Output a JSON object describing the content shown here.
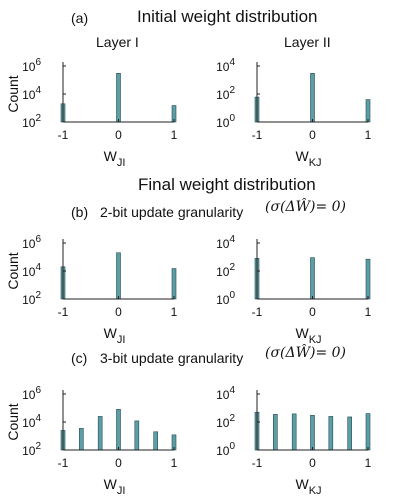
{
  "header": {
    "top_label": "(a)",
    "top_title": "Initial weight distribution",
    "layer1": "Layer I",
    "layer2": "Layer II",
    "final_title": "Final weight distribution",
    "b_label": "(b)",
    "b_text": "2-bit update granularity",
    "b_formula": "(σ(ΔŴ)= 0)",
    "c_label": "(c)",
    "c_text": "3-bit update granularity",
    "c_formula": "(σ(ΔŴ)= 0)"
  },
  "colors": {
    "bar": "#5a9ea6",
    "bar_edge": "#2a4a50",
    "axis": "#222222"
  },
  "chart_data": [
    {
      "id": "a-left",
      "type": "bar",
      "ylabel": "Count",
      "xlabel": "W",
      "xlabel_sub": "JI",
      "xlim": [
        -1,
        1
      ],
      "xticks": [
        "-1",
        "0",
        "1"
      ],
      "log_y": true,
      "ylim_exp": [
        2,
        6
      ],
      "yticks": [
        {
          "base": "10",
          "exp": "6"
        },
        {
          "base": "10",
          "exp": "4"
        },
        {
          "base": "10",
          "exp": "2"
        }
      ],
      "x": [
        -1,
        0,
        1
      ],
      "values": [
        2000,
        300000,
        1500
      ]
    },
    {
      "id": "a-right",
      "type": "bar",
      "ylabel": "",
      "xlabel": "W",
      "xlabel_sub": "KJ",
      "xlim": [
        -1,
        1
      ],
      "xticks": [
        "-1",
        "0",
        "1"
      ],
      "log_y": true,
      "ylim_exp": [
        0,
        4
      ],
      "yticks": [
        {
          "base": "10",
          "exp": "4"
        },
        {
          "base": "10",
          "exp": "2"
        },
        {
          "base": "10",
          "exp": "0"
        }
      ],
      "x": [
        -1,
        0,
        1
      ],
      "values": [
        60,
        3000,
        40
      ]
    },
    {
      "id": "b-left",
      "type": "bar",
      "ylabel": "Count",
      "xlabel": "W",
      "xlabel_sub": "JI",
      "xlim": [
        -1,
        1
      ],
      "xticks": [
        "-1",
        "0",
        "1"
      ],
      "log_y": true,
      "ylim_exp": [
        2,
        6
      ],
      "yticks": [
        {
          "base": "10",
          "exp": "6"
        },
        {
          "base": "10",
          "exp": "4"
        },
        {
          "base": "10",
          "exp": "2"
        }
      ],
      "x": [
        -1,
        0,
        1
      ],
      "values": [
        20000,
        200000,
        15000
      ]
    },
    {
      "id": "b-right",
      "type": "bar",
      "ylabel": "",
      "xlabel": "W",
      "xlabel_sub": "KJ",
      "xlim": [
        -1,
        1
      ],
      "xticks": [
        "-1",
        "0",
        "1"
      ],
      "log_y": true,
      "ylim_exp": [
        0,
        4
      ],
      "yticks": [
        {
          "base": "10",
          "exp": "4"
        },
        {
          "base": "10",
          "exp": "2"
        },
        {
          "base": "10",
          "exp": "0"
        }
      ],
      "x": [
        -1,
        0,
        1
      ],
      "values": [
        800,
        900,
        700
      ]
    },
    {
      "id": "c-left",
      "type": "bar",
      "ylabel": "Count",
      "xlabel": "W",
      "xlabel_sub": "JI",
      "xlim": [
        -1,
        1
      ],
      "xticks": [
        "-1",
        "0",
        "1"
      ],
      "log_y": true,
      "ylim_exp": [
        2,
        6
      ],
      "yticks": [
        {
          "base": "10",
          "exp": "6"
        },
        {
          "base": "10",
          "exp": "4"
        },
        {
          "base": "10",
          "exp": "2"
        }
      ],
      "x": [
        -1,
        -0.67,
        -0.33,
        0,
        0.33,
        0.67,
        1
      ],
      "values": [
        2500,
        3500,
        25000,
        80000,
        12000,
        2000,
        1200
      ]
    },
    {
      "id": "c-right",
      "type": "bar",
      "ylabel": "",
      "xlabel": "W",
      "xlabel_sub": "KJ",
      "xlim": [
        -1,
        1
      ],
      "xticks": [
        "-1",
        "0",
        "1"
      ],
      "log_y": true,
      "ylim_exp": [
        0,
        4
      ],
      "yticks": [
        {
          "base": "10",
          "exp": "4"
        },
        {
          "base": "10",
          "exp": "2"
        },
        {
          "base": "10",
          "exp": "0"
        }
      ],
      "x": [
        -1,
        -0.67,
        -0.33,
        0,
        0.33,
        0.67,
        1
      ],
      "values": [
        500,
        350,
        380,
        300,
        250,
        230,
        400
      ]
    }
  ]
}
